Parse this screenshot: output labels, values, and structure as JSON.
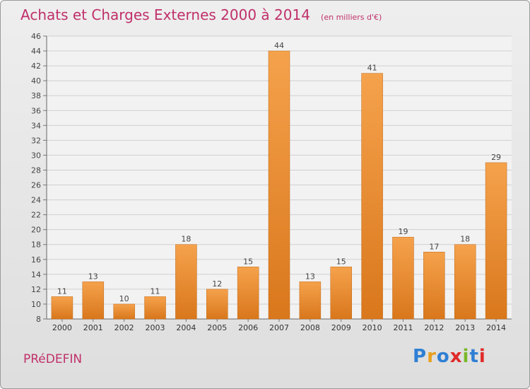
{
  "title": "Achats et Charges Externes 2000 à 2014",
  "subtitle": "(en milliers d'€)",
  "footer_label": "PRéDEFIN",
  "logo": {
    "text": "Proxiti",
    "letter_colors": [
      "#2f7fd4",
      "#e8a020",
      "#2f7fd4",
      "#e02a2a",
      "#7ab82a",
      "#2f7fd4",
      "#e02a2a"
    ]
  },
  "colors": {
    "bar_top": "#f5a24c",
    "bar_bottom": "#d9771c",
    "text": "#555555",
    "brand": "#c0306a"
  },
  "chart_data": {
    "type": "bar",
    "categories": [
      "2000",
      "2001",
      "2002",
      "2003",
      "2004",
      "2005",
      "2006",
      "2007",
      "2008",
      "2009",
      "2010",
      "2011",
      "2012",
      "2013",
      "2014"
    ],
    "values": [
      11,
      13,
      10,
      11,
      18,
      12,
      15,
      44,
      13,
      15,
      41,
      19,
      17,
      18,
      29
    ],
    "ylim": [
      8,
      46
    ],
    "yticks": [
      8,
      10,
      12,
      14,
      16,
      18,
      20,
      22,
      24,
      26,
      28,
      30,
      32,
      34,
      36,
      38,
      40,
      42,
      44,
      46
    ],
    "grid": true,
    "legend": false
  }
}
